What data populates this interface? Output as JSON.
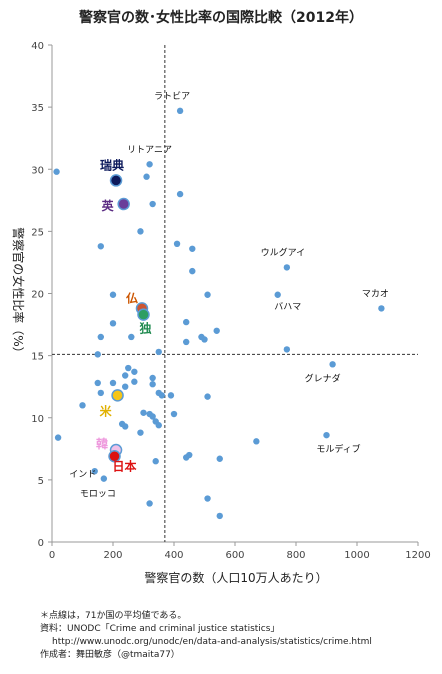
{
  "chart_data": {
    "type": "scatter",
    "title": "警察官の数･女性比率の国際比較（2012年）",
    "xlabel": "警察官の数（人口10万人あたり）",
    "ylabel": "警察官の女性比率（%）",
    "xlim": [
      0,
      1200
    ],
    "ylim": [
      0,
      40
    ],
    "xticks": [
      0,
      200,
      400,
      600,
      800,
      1000,
      1200
    ],
    "yticks": [
      0,
      5,
      10,
      15,
      20,
      25,
      30,
      35,
      40
    ],
    "avg_x": 370,
    "avg_y": 15.1,
    "point_color": "#5b9bd5",
    "points": [
      [
        420,
        34.7
      ],
      [
        15,
        29.8
      ],
      [
        320,
        30.4
      ],
      [
        310,
        29.4
      ],
      [
        420,
        28.0
      ],
      [
        330,
        27.2
      ],
      [
        290,
        25.0
      ],
      [
        160,
        23.8
      ],
      [
        410,
        24.0
      ],
      [
        460,
        23.6
      ],
      [
        460,
        21.8
      ],
      [
        770,
        22.1
      ],
      [
        200,
        19.9
      ],
      [
        510,
        19.9
      ],
      [
        740,
        19.9
      ],
      [
        1080,
        18.8
      ],
      [
        200,
        17.6
      ],
      [
        440,
        17.7
      ],
      [
        160,
        16.5
      ],
      [
        260,
        16.5
      ],
      [
        350,
        15.3
      ],
      [
        540,
        17.0
      ],
      [
        500,
        16.3
      ],
      [
        490,
        16.5
      ],
      [
        150,
        15.1
      ],
      [
        440,
        16.1
      ],
      [
        770,
        15.5
      ],
      [
        920,
        14.3
      ],
      [
        250,
        14.0
      ],
      [
        270,
        13.7
      ],
      [
        240,
        13.4
      ],
      [
        330,
        13.2
      ],
      [
        150,
        12.8
      ],
      [
        200,
        12.8
      ],
      [
        240,
        12.5
      ],
      [
        330,
        12.7
      ],
      [
        270,
        12.9
      ],
      [
        160,
        12.0
      ],
      [
        350,
        12.0
      ],
      [
        360,
        11.8
      ],
      [
        390,
        11.8
      ],
      [
        510,
        11.7
      ],
      [
        100,
        11.0
      ],
      [
        300,
        10.4
      ],
      [
        320,
        10.3
      ],
      [
        330,
        10.1
      ],
      [
        400,
        10.3
      ],
      [
        340,
        9.7
      ],
      [
        350,
        9.4
      ],
      [
        240,
        9.3
      ],
      [
        230,
        9.5
      ],
      [
        290,
        8.8
      ],
      [
        20,
        8.4
      ],
      [
        670,
        8.1
      ],
      [
        900,
        8.6
      ],
      [
        450,
        7.0
      ],
      [
        440,
        6.8
      ],
      [
        550,
        6.7
      ],
      [
        340,
        6.5
      ],
      [
        140,
        5.7
      ],
      [
        170,
        5.1
      ],
      [
        510,
        3.5
      ],
      [
        320,
        3.1
      ],
      [
        550,
        2.1
      ]
    ],
    "countries": [
      {
        "name": "瑞典",
        "x": 210,
        "y": 29.1,
        "color": "#0d1a5c",
        "text_color": "#0d1a5c"
      },
      {
        "name": "英",
        "x": 235,
        "y": 27.2,
        "color": "#6a3d9a",
        "text_color": "#5b2c83"
      },
      {
        "name": "仏",
        "x": 295,
        "y": 18.8,
        "color": "#cc5533",
        "text_color": "#cc5500"
      },
      {
        "name": "独",
        "x": 300,
        "y": 18.3,
        "color": "#2e9e63",
        "text_color": "#1f8a4f"
      },
      {
        "name": "米",
        "x": 215,
        "y": 11.8,
        "color": "#f5c518",
        "text_color": "#e0b000"
      },
      {
        "name": "韓",
        "x": 210,
        "y": 7.4,
        "color": "#f0c0e8",
        "text_color": "#ee99dd"
      },
      {
        "name": "日本",
        "x": 205,
        "y": 6.9,
        "color": "#dd1111",
        "text_color": "#dd1111"
      }
    ],
    "annotations": [
      {
        "text": "ラトビア",
        "x": 420,
        "y": 34.7
      },
      {
        "text": "リトアニア",
        "x": 320,
        "y": 30.4
      },
      {
        "text": "ウルグアイ",
        "x": 770,
        "y": 22.1
      },
      {
        "text": "マカオ",
        "x": 1080,
        "y": 18.8
      },
      {
        "text": "バハマ",
        "x": 740,
        "y": 19.9
      },
      {
        "text": "グレナダ",
        "x": 920,
        "y": 14.3
      },
      {
        "text": "モルディブ",
        "x": 900,
        "y": 8.6
      },
      {
        "text": "インド",
        "x": 140,
        "y": 5.7
      },
      {
        "text": "モロッコ",
        "x": 170,
        "y": 5.1
      }
    ]
  },
  "notes": {
    "note1": "＊点線は，71か国の平均値である。",
    "note2": "資料：UNODC「Crime and criminal justice statistics」",
    "note3": "http://www.unodc.org/unodc/en/data-and-analysis/statistics/crime.html",
    "note4": "作成者：舞田敏彦（@tmaita77）"
  }
}
